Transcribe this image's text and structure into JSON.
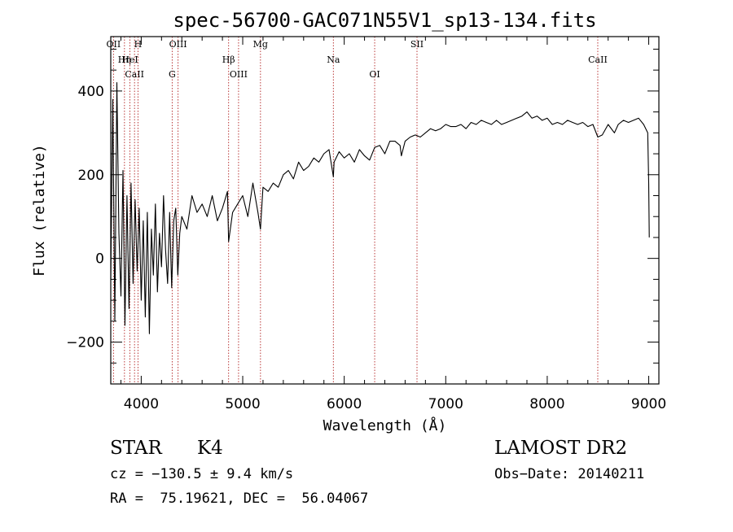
{
  "colors": {
    "frame": "#000000",
    "spectrum": "#000000",
    "line_marker": "#b22222",
    "background": "#ffffff"
  },
  "chart_data": {
    "type": "line",
    "title": "spec-56700-GAC071N55V1_sp13-134.fits",
    "xlabel": "Wavelength (Å)",
    "ylabel": "Flux (relative)",
    "xlim": [
      3700,
      9100
    ],
    "ylim": [
      -300,
      530
    ],
    "x_ticks": [
      4000,
      5000,
      6000,
      7000,
      8000,
      9000
    ],
    "x_tick_labels": [
      "4000",
      "5000",
      "6000",
      "7000",
      "8000",
      "9000"
    ],
    "y_ticks": [
      -200,
      0,
      200,
      400
    ],
    "y_tick_labels": [
      "−200",
      "0",
      "200",
      "400"
    ],
    "series": [
      {
        "name": "flux",
        "x": [
          3700,
          3720,
          3740,
          3760,
          3780,
          3800,
          3820,
          3840,
          3860,
          3880,
          3900,
          3920,
          3940,
          3960,
          3980,
          4000,
          4020,
          4040,
          4060,
          4080,
          4100,
          4120,
          4140,
          4160,
          4180,
          4200,
          4220,
          4240,
          4260,
          4280,
          4300,
          4320,
          4340,
          4360,
          4380,
          4400,
          4450,
          4500,
          4550,
          4600,
          4650,
          4700,
          4750,
          4800,
          4850,
          4861,
          4900,
          4950,
          5000,
          5050,
          5100,
          5150,
          5175,
          5200,
          5250,
          5300,
          5350,
          5400,
          5450,
          5500,
          5550,
          5600,
          5650,
          5700,
          5750,
          5800,
          5850,
          5893,
          5900,
          5950,
          6000,
          6050,
          6100,
          6150,
          6200,
          6250,
          6300,
          6350,
          6400,
          6450,
          6500,
          6550,
          6563,
          6600,
          6650,
          6700,
          6750,
          6800,
          6850,
          6900,
          6950,
          7000,
          7050,
          7100,
          7150,
          7200,
          7250,
          7300,
          7350,
          7400,
          7450,
          7500,
          7550,
          7600,
          7650,
          7700,
          7750,
          7800,
          7850,
          7900,
          7950,
          8000,
          8050,
          8100,
          8150,
          8200,
          8250,
          8300,
          8350,
          8400,
          8450,
          8498,
          8542,
          8600,
          8662,
          8700,
          8750,
          8800,
          8850,
          8900,
          8950,
          8990,
          9000,
          9005
        ],
        "y": [
          -50,
          380,
          -150,
          420,
          60,
          -90,
          210,
          -160,
          150,
          -120,
          180,
          -60,
          140,
          -30,
          120,
          -100,
          90,
          -140,
          110,
          -180,
          70,
          -40,
          130,
          -80,
          60,
          -20,
          150,
          20,
          -60,
          110,
          -70,
          90,
          120,
          -40,
          60,
          100,
          70,
          150,
          110,
          130,
          100,
          150,
          90,
          120,
          160,
          40,
          110,
          130,
          150,
          100,
          180,
          110,
          70,
          170,
          160,
          180,
          170,
          200,
          210,
          190,
          230,
          210,
          220,
          240,
          230,
          250,
          260,
          195,
          230,
          255,
          240,
          250,
          230,
          260,
          245,
          235,
          265,
          270,
          250,
          280,
          280,
          270,
          245,
          280,
          290,
          295,
          290,
          300,
          310,
          305,
          310,
          320,
          315,
          315,
          320,
          310,
          325,
          320,
          330,
          325,
          320,
          330,
          320,
          325,
          330,
          335,
          340,
          350,
          335,
          340,
          330,
          335,
          320,
          325,
          320,
          330,
          325,
          320,
          325,
          315,
          320,
          290,
          295,
          320,
          300,
          320,
          330,
          325,
          330,
          335,
          320,
          300,
          180,
          50
        ]
      }
    ],
    "line_markers": [
      {
        "label": "OII",
        "wavelength": 3727
      },
      {
        "label": "Hη",
        "wavelength": 3835
      },
      {
        "label": "CaII",
        "wavelength": 3934
      },
      {
        "label": "H",
        "wavelength": 3968
      },
      {
        "label": "HeI",
        "wavelength": 3889
      },
      {
        "label": "G",
        "wavelength": 4305
      },
      {
        "label": "OIII",
        "wavelength": 4363
      },
      {
        "label": "Hβ",
        "wavelength": 4861
      },
      {
        "label": "OIII",
        "wavelength": 4959
      },
      {
        "label": "Mg",
        "wavelength": 5175
      },
      {
        "label": "Na",
        "wavelength": 5893
      },
      {
        "label": "OI",
        "wavelength": 6300
      },
      {
        "label": "SII",
        "wavelength": 6717
      },
      {
        "label": "CaII",
        "wavelength": 8498
      }
    ]
  },
  "info": {
    "object_class": "STAR",
    "subclass": "K4",
    "survey": "LAMOST DR2",
    "redshift": "cz = −130.5 ± 9.4 km/s",
    "obs_date": "Obs−Date: 20140211",
    "coords": "RA =  75.19621, DEC =  56.04067"
  }
}
